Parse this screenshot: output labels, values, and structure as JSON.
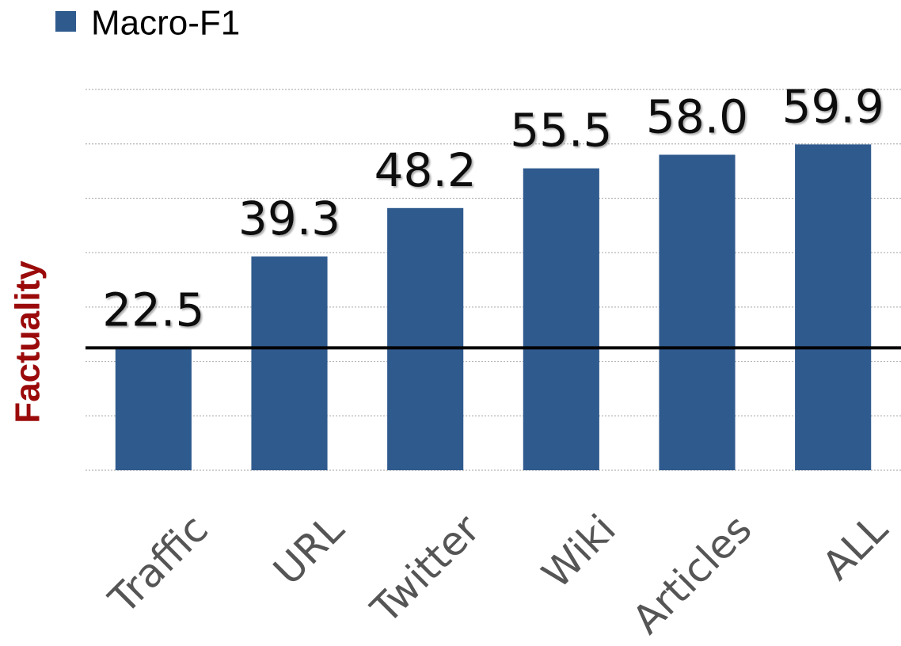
{
  "chart_data": {
    "type": "bar",
    "legend": "Macro-F1",
    "y_label": "Factuality",
    "categories": [
      "Traffic",
      "URL",
      "Twitter",
      "Wiki",
      "Articles",
      "ALL"
    ],
    "values": [
      22.5,
      39.3,
      48.2,
      55.5,
      58.0,
      59.9
    ],
    "value_labels": [
      "22.5",
      "39.3",
      "48.2",
      "55.5",
      "58.0",
      "59.9"
    ],
    "color": "#2f5a8e",
    "reference_line": 22.5,
    "ylim": [
      0,
      70
    ],
    "yticks": [
      0,
      10,
      20,
      30,
      40,
      50,
      60,
      70
    ],
    "grid": true
  }
}
